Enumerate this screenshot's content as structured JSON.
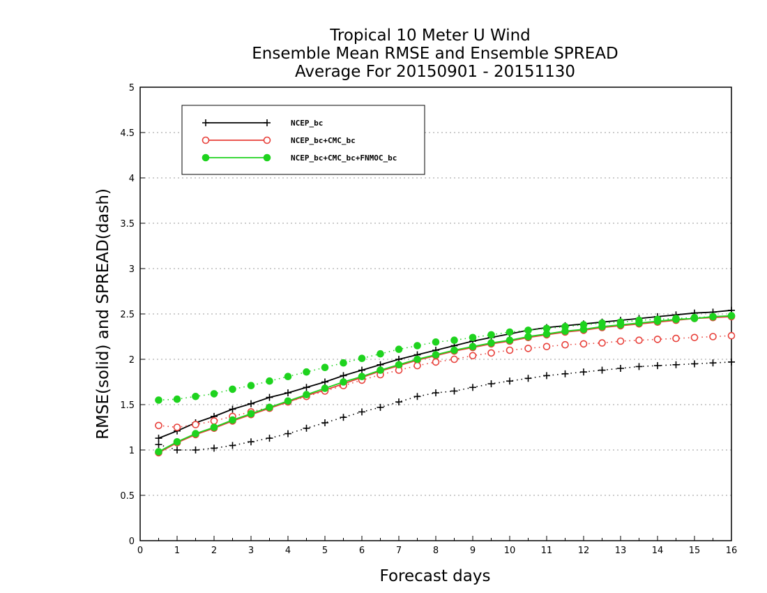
{
  "chart_data": {
    "type": "line",
    "title": [
      "Tropical 10 Meter U Wind",
      "Ensemble Mean RMSE and Ensemble SPREAD",
      "Average For 20150901 - 20151130"
    ],
    "xlabel": "Forecast days",
    "ylabel": "RMSE(solid) and SPREAD(dash)",
    "xlim": [
      0,
      16
    ],
    "ylim": [
      0,
      5
    ],
    "xticks": [
      "0",
      "1",
      "2",
      "3",
      "4",
      "5",
      "6",
      "7",
      "8",
      "9",
      "10",
      "11",
      "12",
      "13",
      "14",
      "15",
      "16"
    ],
    "yticks": [
      "0",
      "0.5",
      "1",
      "1.5",
      "2",
      "2.5",
      "3",
      "3.5",
      "4",
      "4.5",
      "5"
    ],
    "grid": true,
    "legend_position": "top-left",
    "x": [
      0.5,
      1,
      1.5,
      2,
      2.5,
      3,
      3.5,
      4,
      4.5,
      5,
      5.5,
      6,
      6.5,
      7,
      7.5,
      8,
      8.5,
      9,
      9.5,
      10,
      10.5,
      11,
      11.5,
      12,
      12.5,
      13,
      13.5,
      14,
      14.5,
      15,
      15.5,
      16
    ],
    "series": [
      {
        "name": "NCEP_bc",
        "color": "#000000",
        "marker": "plus",
        "rmse": [
          1.13,
          1.21,
          1.3,
          1.37,
          1.45,
          1.51,
          1.58,
          1.63,
          1.69,
          1.75,
          1.82,
          1.88,
          1.94,
          2.0,
          2.05,
          2.1,
          2.15,
          2.2,
          2.24,
          2.28,
          2.32,
          2.35,
          2.37,
          2.39,
          2.41,
          2.43,
          2.45,
          2.47,
          2.49,
          2.51,
          2.52,
          2.54
        ],
        "spread": [
          1.06,
          1.0,
          1.0,
          1.02,
          1.05,
          1.09,
          1.13,
          1.18,
          1.24,
          1.3,
          1.36,
          1.42,
          1.47,
          1.53,
          1.59,
          1.63,
          1.65,
          1.69,
          1.73,
          1.76,
          1.79,
          1.82,
          1.84,
          1.86,
          1.88,
          1.9,
          1.92,
          1.93,
          1.94,
          1.95,
          1.96,
          1.97
        ]
      },
      {
        "name": "NCEP_bc+CMC_bc",
        "color": "#e8403a",
        "marker": "open-circle",
        "rmse": [
          0.97,
          1.08,
          1.17,
          1.24,
          1.32,
          1.39,
          1.46,
          1.53,
          1.6,
          1.66,
          1.73,
          1.8,
          1.87,
          1.93,
          1.99,
          2.04,
          2.09,
          2.13,
          2.17,
          2.2,
          2.24,
          2.27,
          2.3,
          2.32,
          2.35,
          2.37,
          2.39,
          2.41,
          2.43,
          2.45,
          2.46,
          2.47
        ],
        "spread": [
          1.27,
          1.25,
          1.28,
          1.32,
          1.37,
          1.42,
          1.47,
          1.53,
          1.59,
          1.65,
          1.71,
          1.77,
          1.83,
          1.88,
          1.93,
          1.97,
          2.0,
          2.04,
          2.07,
          2.1,
          2.12,
          2.14,
          2.16,
          2.17,
          2.18,
          2.2,
          2.21,
          2.22,
          2.23,
          2.24,
          2.25,
          2.26
        ]
      },
      {
        "name": "NCEP_bc+CMC_bc+FNMOC_bc",
        "color": "#1ed31e",
        "marker": "filled-circle",
        "rmse": [
          0.98,
          1.09,
          1.18,
          1.25,
          1.33,
          1.4,
          1.47,
          1.54,
          1.61,
          1.68,
          1.75,
          1.81,
          1.88,
          1.94,
          2.0,
          2.05,
          2.1,
          2.14,
          2.18,
          2.21,
          2.25,
          2.28,
          2.31,
          2.33,
          2.36,
          2.38,
          2.4,
          2.42,
          2.44,
          2.45,
          2.47,
          2.48
        ],
        "spread": [
          1.55,
          1.56,
          1.59,
          1.62,
          1.67,
          1.71,
          1.76,
          1.81,
          1.86,
          1.91,
          1.96,
          2.01,
          2.06,
          2.11,
          2.15,
          2.19,
          2.21,
          2.24,
          2.27,
          2.3,
          2.32,
          2.34,
          2.36,
          2.38,
          2.4,
          2.41,
          2.43,
          2.44,
          2.45,
          2.46,
          2.47,
          2.48
        ]
      }
    ]
  }
}
